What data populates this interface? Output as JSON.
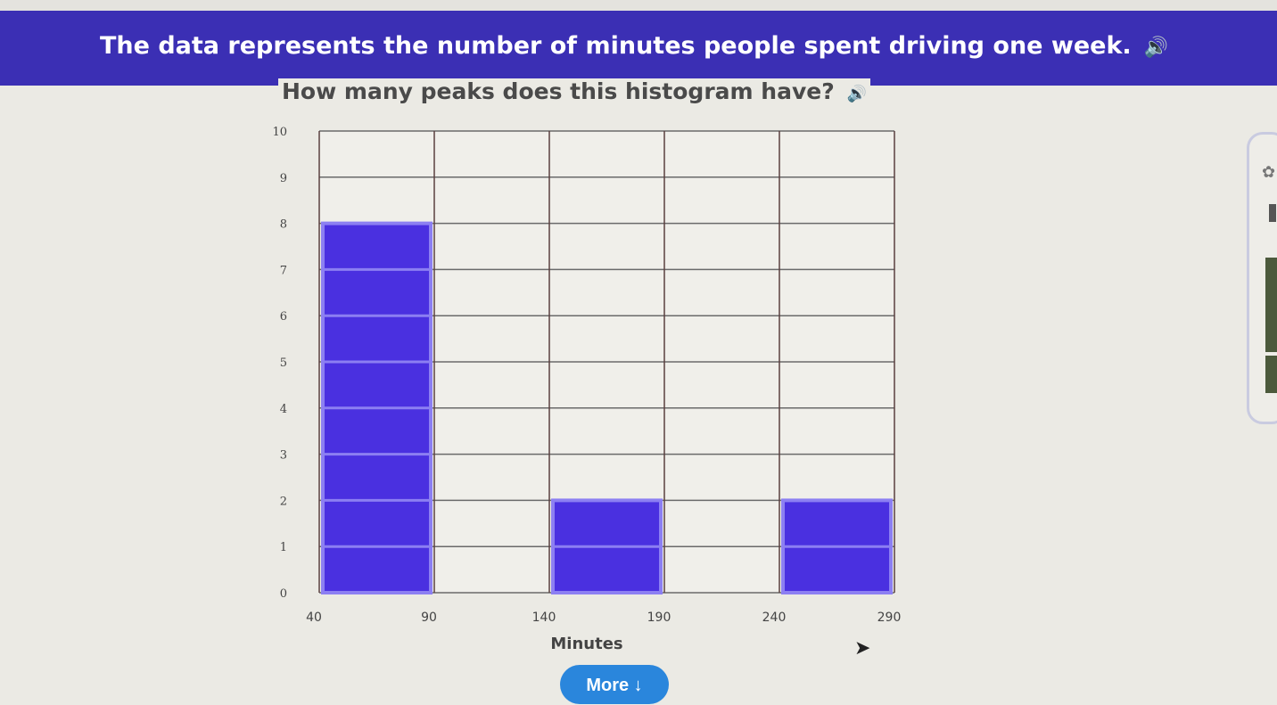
{
  "header": {
    "title": "The data represents the number of minutes people spent driving one week.",
    "speaker_icon": "speaker-icon"
  },
  "question": "How many peaks does this histogram have?",
  "more_button": {
    "label": "More",
    "icon": "arrow-down-icon"
  },
  "colors": {
    "banner": "#3b2fb4",
    "bar": "#4a30e0",
    "bar_border": "#8c7ff2",
    "button": "#2a86dc"
  },
  "chart_data": {
    "type": "bar",
    "title": "",
    "xlabel": "Minutes",
    "ylabel": "",
    "bin_edges": [
      40,
      90,
      140,
      190,
      240,
      290
    ],
    "categories": [
      "40-90",
      "90-140",
      "140-190",
      "190-240",
      "240-290"
    ],
    "values": [
      8,
      0,
      2,
      0,
      2
    ],
    "ylim": [
      0,
      10
    ],
    "y_ticks": [
      0,
      1,
      2,
      3,
      4,
      5,
      6,
      7,
      8,
      9,
      10
    ],
    "x_ticks": [
      40,
      90,
      140,
      190,
      240,
      290
    ],
    "grid": true
  }
}
